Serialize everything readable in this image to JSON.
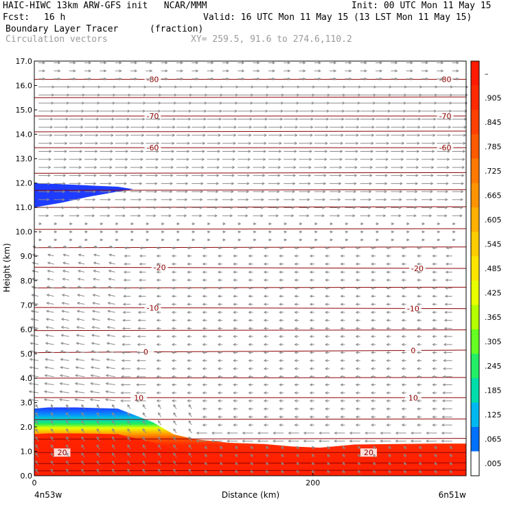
{
  "header": {
    "left_line1": "HAIC-HIWC 13km ARW-GFS init   NCAR/MMM",
    "right_line1": "Init: 00 UTC Mon 11 May 15",
    "fcst_label": "Fcst:",
    "fcst_value": "16 h",
    "valid": "Valid: 16 UTC Mon 11 May 15 (13 LST Mon 11 May 15)",
    "field_name": "Boundary Layer Tracer",
    "field_units": "(fraction)",
    "vectors_label": "Circulation vectors",
    "xy_label": "XY= 259.5, 91.6 to 274.6,110.2"
  },
  "colors": {
    "contour": "#8b0000",
    "vector": "#8a8a8a",
    "tracer_low": "#1e3cff",
    "tracer_high": "#ff2200"
  },
  "chart_data": {
    "type": "heatmap",
    "title": "Boundary Layer Tracer",
    "units": "(fraction)",
    "xlabel": "Distance (km)",
    "ylabel": "Height (km)",
    "xlim": [
      0,
      310
    ],
    "ylim": [
      0,
      17
    ],
    "x_ticks": [
      0,
      200
    ],
    "x_end_labels": [
      "4n53w",
      "6n51w"
    ],
    "y_ticks": [
      0.0,
      1.0,
      2.0,
      3.0,
      4.0,
      5.0,
      6.0,
      7.0,
      8.0,
      9.0,
      10.0,
      11.0,
      12.0,
      13.0,
      14.0,
      15.0,
      16.0,
      17.0
    ],
    "y_tick_labels": [
      "0.0",
      "1.0",
      "2.0",
      "3.0",
      "4.0",
      "5.0",
      "6.0",
      "7.0",
      "8.0",
      "9.0",
      "10.0",
      "11.0",
      "12.0",
      "13.0",
      "14.0",
      "15.0",
      "16.0",
      "17.0"
    ],
    "colorbar": {
      "labels": [
        "–",
        ".905",
        ".845",
        ".785",
        ".725",
        ".665",
        ".605",
        ".545",
        ".485",
        ".425",
        ".365",
        ".305",
        ".245",
        ".185",
        ".125",
        ".065",
        ".005"
      ],
      "colors": [
        "#ff1a00",
        "#ff2a00",
        "#ff4000",
        "#ff5a00",
        "#ff7800",
        "#ff9400",
        "#ffb000",
        "#ffcc00",
        "#ffe400",
        "#e8ff00",
        "#b4ff00",
        "#66ff22",
        "#22ee66",
        "#00ddaa",
        "#00b8f0",
        "#0070ff",
        "#ffffff"
      ]
    },
    "tracer_surface_layer": [
      {
        "x": 0,
        "top": 2.75
      },
      {
        "x": 10,
        "top": 2.8
      },
      {
        "x": 30,
        "top": 2.8
      },
      {
        "x": 60,
        "top": 2.75
      },
      {
        "x": 85,
        "top": 2.2
      },
      {
        "x": 100,
        "top": 1.7
      },
      {
        "x": 115,
        "top": 1.5
      },
      {
        "x": 140,
        "top": 1.35
      },
      {
        "x": 165,
        "top": 1.3
      },
      {
        "x": 185,
        "top": 1.2
      },
      {
        "x": 205,
        "top": 1.15
      },
      {
        "x": 230,
        "top": 1.28
      },
      {
        "x": 260,
        "top": 1.3
      },
      {
        "x": 290,
        "top": 1.32
      },
      {
        "x": 310,
        "top": 1.32
      }
    ],
    "tracer_aloft_blob": [
      {
        "x": 0,
        "top": 12.0,
        "bottom": 11.0
      },
      {
        "x": 20,
        "top": 11.95,
        "bottom": 11.2
      },
      {
        "x": 40,
        "top": 11.9,
        "bottom": 11.45
      },
      {
        "x": 60,
        "top": 11.85,
        "bottom": 11.65
      },
      {
        "x": 71,
        "top": 11.75,
        "bottom": 11.75
      }
    ],
    "temperature_contours": [
      {
        "label": "20",
        "y_start": 0.95,
        "y_end": 0.95,
        "label_at": [
          20,
          240
        ]
      },
      {
        "label": "10",
        "y_start": 3.2,
        "y_end": 3.2,
        "label_at": [
          75,
          272
        ]
      },
      {
        "label": "0",
        "y_start": 5.05,
        "y_end": 5.15,
        "label_at": [
          80,
          272
        ]
      },
      {
        "label": "-10",
        "y_start": 6.9,
        "y_end": 6.85,
        "label_at": [
          85,
          272
        ]
      },
      {
        "label": "-20",
        "y_start": 8.55,
        "y_end": 8.5,
        "label_at": [
          90,
          275
        ]
      },
      {
        "label": "-60",
        "y_start": 13.45,
        "y_end": 13.45,
        "label_at": [
          85,
          295
        ]
      },
      {
        "label": "-70",
        "y_start": 14.75,
        "y_end": 14.75,
        "label_at": [
          85,
          295
        ]
      },
      {
        "label": "-80",
        "y_start": 16.25,
        "y_end": 16.25,
        "label_at": [
          85,
          295
        ]
      }
    ],
    "unlabeled_contour_levels": [
      0.2,
      0.5,
      1.5,
      2.3,
      4.0,
      5.95,
      7.7,
      9.35,
      10.1,
      11.0,
      11.7,
      12.4,
      14.1,
      15.5
    ],
    "wind_field": {
      "upper_flow": "eastward",
      "lower_flow": "westward",
      "transition_height": 10.5
    }
  }
}
